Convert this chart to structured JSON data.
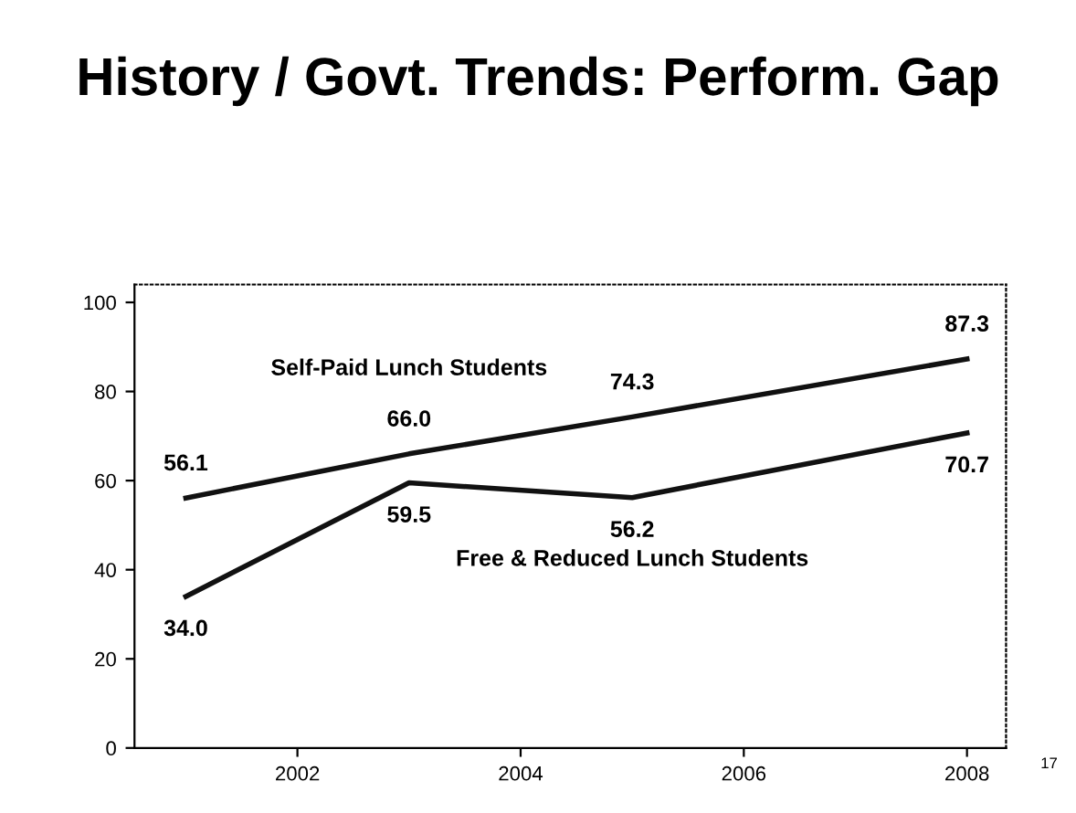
{
  "chart_data": {
    "type": "line",
    "title": "History / Govt. Trends: Perform. Gap",
    "x": [
      2001,
      2003,
      2005,
      2008
    ],
    "series": [
      {
        "name": "Self-Paid Lunch Students",
        "color": "#111111",
        "values": [
          56.1,
          66.0,
          74.3,
          87.3
        ],
        "value_labels": [
          "56.1",
          "66.0",
          "74.3",
          "87.3"
        ]
      },
      {
        "name": "Free & Reduced Lunch Students",
        "color": "#111111",
        "values": [
          34.0,
          59.5,
          56.2,
          70.7
        ],
        "value_labels": [
          "34.0",
          "59.5",
          "56.2",
          "70.7"
        ]
      }
    ],
    "xlim": [
      2000.54,
      2008.35
    ],
    "xticks": [
      2002,
      2004,
      2006,
      2008
    ],
    "ylim": [
      0,
      104
    ],
    "yticks": [
      0,
      20,
      40,
      60,
      80,
      100
    ],
    "grid": false,
    "legend": false,
    "marker": "none",
    "line_style": "solid",
    "annotations": [
      "17"
    ]
  }
}
